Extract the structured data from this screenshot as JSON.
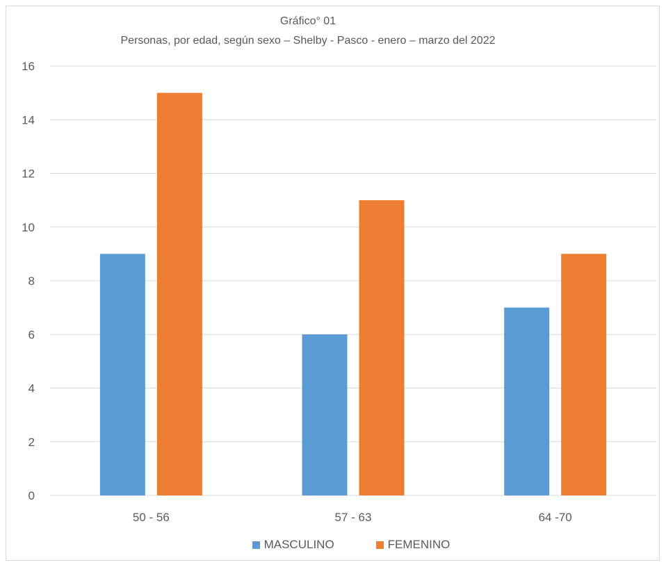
{
  "chart_data": {
    "type": "bar",
    "title": "Gráfico° 01",
    "subtitle": "Personas, por edad, según sexo – Shelby - Pasco - enero – marzo del 2022",
    "categories": [
      "50 - 56",
      "57 - 63",
      "64 -70"
    ],
    "series": [
      {
        "name": "MASCULINO",
        "values": [
          9,
          6,
          7
        ],
        "color": "#5b9bd5"
      },
      {
        "name": "FEMENINO",
        "values": [
          15,
          11,
          9
        ],
        "color": "#ed7d31"
      }
    ],
    "yticks": [
      "0",
      "2",
      "4",
      "6",
      "8",
      "10",
      "12",
      "14",
      "16"
    ],
    "ylim": [
      0,
      16
    ],
    "grid": true,
    "legend_position": "bottom"
  }
}
